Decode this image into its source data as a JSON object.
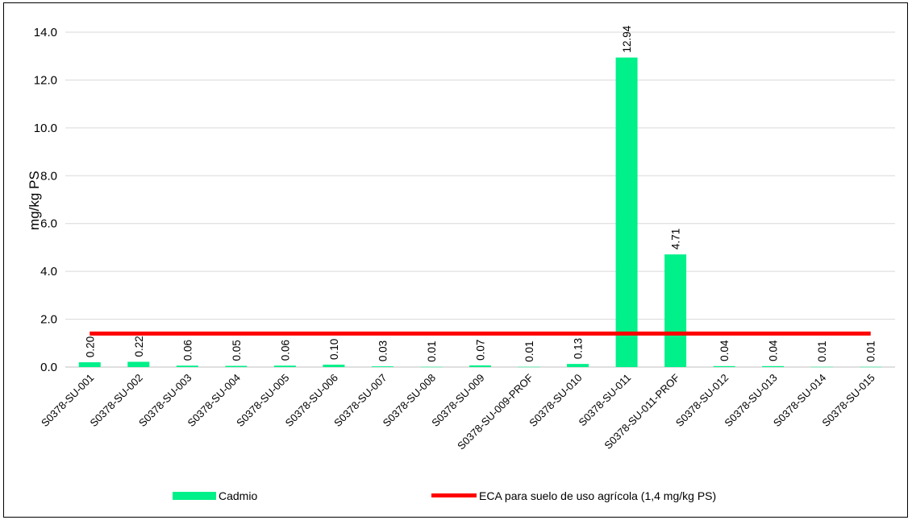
{
  "chart_data": {
    "type": "bar",
    "title": "",
    "xlabel": "",
    "ylabel": "mg/kg PS",
    "ylim": [
      0,
      14
    ],
    "yticks": [
      "0.0",
      "2.0",
      "4.0",
      "6.0",
      "8.0",
      "10.0",
      "12.0",
      "14.0"
    ],
    "grid": true,
    "legend_position": "bottom",
    "categories": [
      "S0378-SU-001",
      "S0378-SU-002",
      "S0378-SU-003",
      "S0378-SU-004",
      "S0378-SU-005",
      "S0378-SU-006",
      "S0378-SU-007",
      "S0378-SU-008",
      "S0378-SU-009",
      "S0378-SU-009-PROF",
      "S0378-SU-010",
      "S0378-SU-011",
      "S0378-SU-011-PROF",
      "S0378-SU-012",
      "S0378-SU-013",
      "S0378-SU-014",
      "S0378-SU-015"
    ],
    "series": [
      {
        "name": "Cadmio",
        "type": "bar",
        "color": "#00F08A",
        "values": [
          0.2,
          0.22,
          0.06,
          0.05,
          0.06,
          0.1,
          0.03,
          0.01,
          0.07,
          0.01,
          0.13,
          12.94,
          4.71,
          0.04,
          0.04,
          0.01,
          0.01
        ],
        "labels": [
          "0.20",
          "0.22",
          "0.06",
          "0.05",
          "0.06",
          "0.10",
          "0.03",
          "0.01",
          "0.07",
          "0.01",
          "0.13",
          "12.94",
          "4.71",
          "0.04",
          "0.04",
          "0.01",
          "0.01"
        ]
      },
      {
        "name": "ECA para suelo de uso agrícola (1,4 mg/kg PS)",
        "type": "line",
        "color": "#FF0000",
        "value": 1.4
      }
    ]
  }
}
